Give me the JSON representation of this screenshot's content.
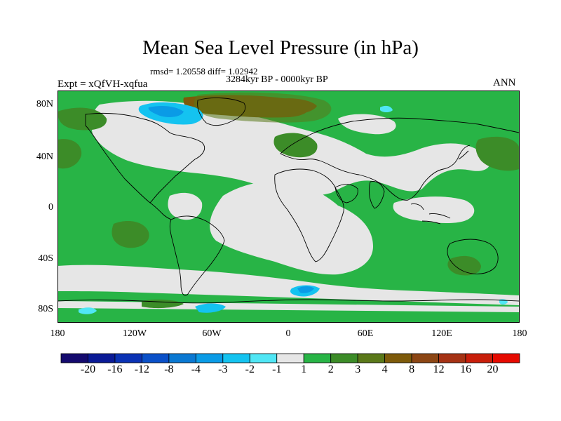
{
  "title": "Mean Sea Level Pressure (in hPa)",
  "stats": "rmsd= 1.20558 diff= 1.02942",
  "period": "3284kyr BP - 0000kyr BP",
  "experiment": "Expt = xQfVH-xqfua",
  "season": "ANN",
  "y_axis_labels": [
    "80N",
    "40N",
    "0",
    "40S",
    "80S"
  ],
  "x_axis_labels": [
    "180",
    "120W",
    "60W",
    "0",
    "60E",
    "120E",
    "180"
  ],
  "legend": {
    "labels": [
      "-20",
      "-16",
      "-12",
      "-8",
      "-4",
      "-3",
      "-2",
      "-1",
      "1",
      "2",
      "3",
      "4",
      "8",
      "12",
      "16",
      "20"
    ],
    "colors": [
      "#140a6e",
      "#0a1a96",
      "#0a32b4",
      "#0a50c8",
      "#0a78d2",
      "#0a9be6",
      "#14c3f0",
      "#50e6f5",
      "#e6e6e6",
      "#28b446",
      "#3c8c28",
      "#5a7819",
      "#7d5a0a",
      "#8c4614",
      "#a53214",
      "#c81e0a",
      "#e60a00"
    ]
  },
  "colors": {
    "background_field": "#e6e6e6",
    "positive_1_2": "#28b446",
    "positive_2_3": "#3c8c28",
    "positive_3_4": "#5a7819",
    "positive_4_8": "#7d5a0a",
    "negative_2_1": "#50e6f5",
    "negative_3_2": "#14c3f0",
    "negative_4_3": "#0a9be6"
  }
}
